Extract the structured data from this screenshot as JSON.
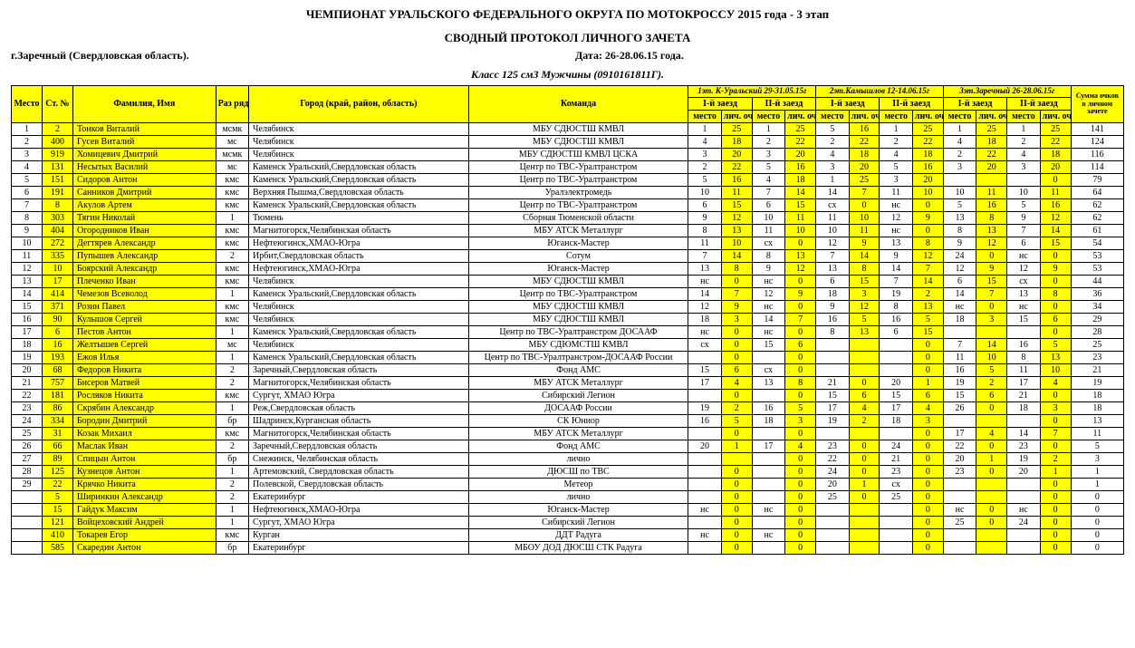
{
  "header": {
    "title1": "ЧЕМПИОНАТ  УРАЛЬСКОГО ФЕДЕРАЛЬНОГО ОКРУГА ПО МОТОКРОССУ 2015 года - 3 этап",
    "title2": "СВОДНЫЙ  ПРОТОКОЛ ЛИЧНОГО ЗАЧЕТА",
    "location": "г.Заречный (Свердловская область).",
    "date": "Дата: 26-28.06.15 года.",
    "class": "Класс 125 см3  Мужчины (0910161811Г)."
  },
  "columns": {
    "mesto": "Место",
    "stn": "Ст. №",
    "name": "Фамилия,  Имя",
    "rank": "Раз ряд",
    "city": "Город (край, район, область)",
    "team": "Команда",
    "sum": "Сумма очков в личном зачете",
    "run_mesto": "место",
    "run_pts": "лич. очки",
    "heat1": "I-й заезд",
    "heat2": "II-й заезд"
  },
  "stages": [
    "1эт. К-Уральский 29-31.05.15г",
    "2эт.Камышлов 12-14.06.15г",
    "3эт.Заречный 26-28.06.15г"
  ],
  "colors": {
    "highlight": "#ffff00",
    "border": "#000000",
    "bg": "#ffffff",
    "text": "#000000"
  },
  "rows": [
    {
      "m": "1",
      "st": "2",
      "name": "Тонков Виталий",
      "rank": "мсмк",
      "city": "Челябинск",
      "team": "МБУ СДЮСТШ КМВЛ",
      "r": [
        [
          "1",
          "25"
        ],
        [
          "1",
          "25"
        ],
        [
          "5",
          "16"
        ],
        [
          "1",
          "25"
        ],
        [
          "1",
          "25"
        ],
        [
          "1",
          "25"
        ]
      ],
      "sum": "141"
    },
    {
      "m": "2",
      "st": "400",
      "name": "Гусев Виталий",
      "rank": "мс",
      "city": "Челябинск",
      "team": "МБУ СДЮСТШ КМВЛ",
      "r": [
        [
          "4",
          "18"
        ],
        [
          "2",
          "22"
        ],
        [
          "2",
          "22"
        ],
        [
          "2",
          "22"
        ],
        [
          "4",
          "18"
        ],
        [
          "2",
          "22"
        ]
      ],
      "sum": "124"
    },
    {
      "m": "3",
      "st": "919",
      "name": "Хомицевич Дмитрий",
      "rank": "мсмк",
      "city": "Челябинск",
      "team": "МБУ СДЮСТШ КМВЛ ЦСКА",
      "r": [
        [
          "3",
          "20"
        ],
        [
          "3",
          "20"
        ],
        [
          "4",
          "18"
        ],
        [
          "4",
          "18"
        ],
        [
          "2",
          "22"
        ],
        [
          "4",
          "18"
        ]
      ],
      "sum": "116"
    },
    {
      "m": "4",
      "st": "131",
      "name": "Несытых Василий",
      "rank": "мс",
      "city": "Каменск Уральский,Свердловская область",
      "team": "Центр по ТВС-Уралтранстром",
      "r": [
        [
          "2",
          "22"
        ],
        [
          "5",
          "16"
        ],
        [
          "3",
          "20"
        ],
        [
          "5",
          "16"
        ],
        [
          "3",
          "20"
        ],
        [
          "3",
          "20"
        ]
      ],
      "sum": "114"
    },
    {
      "m": "5",
      "st": "151",
      "name": "Сидоров Антон",
      "rank": "кмс",
      "city": "Каменск Уральский,Свердловская область",
      "team": "Центр по ТВС-Уралтранстром",
      "r": [
        [
          "5",
          "16"
        ],
        [
          "4",
          "18"
        ],
        [
          "1",
          "25"
        ],
        [
          "3",
          "20"
        ],
        [
          "",
          ""
        ],
        [
          "",
          "0"
        ]
      ],
      "sum": "79"
    },
    {
      "m": "6",
      "st": "191",
      "name": "Санников Дмитрий",
      "rank": "кмс",
      "city": "Верхняя Пышма,Свердловская область",
      "team": "Уралэлектромедь",
      "r": [
        [
          "10",
          "11"
        ],
        [
          "7",
          "14"
        ],
        [
          "14",
          "7"
        ],
        [
          "11",
          "10"
        ],
        [
          "10",
          "11"
        ],
        [
          "10",
          "11"
        ]
      ],
      "sum": "64"
    },
    {
      "m": "7",
      "st": "8",
      "name": "Акулов Артем",
      "rank": "кмс",
      "city": "Каменск Уральский,Свердловская область",
      "team": "Центр по ТВС-Уралтранстром",
      "r": [
        [
          "6",
          "15"
        ],
        [
          "6",
          "15"
        ],
        [
          "сх",
          "0"
        ],
        [
          "нс",
          "0"
        ],
        [
          "5",
          "16"
        ],
        [
          "5",
          "16"
        ]
      ],
      "sum": "62"
    },
    {
      "m": "8",
      "st": "303",
      "name": "Тягин Николай",
      "rank": "1",
      "city": "Тюмень",
      "team": "Сборная Тюменской области",
      "r": [
        [
          "9",
          "12"
        ],
        [
          "10",
          "11"
        ],
        [
          "11",
          "10"
        ],
        [
          "12",
          "9"
        ],
        [
          "13",
          "8"
        ],
        [
          "9",
          "12"
        ]
      ],
      "sum": "62"
    },
    {
      "m": "9",
      "st": "404",
      "name": "Огородников Иван",
      "rank": "кмс",
      "city": "Магнитогорск,Челябинская область",
      "team": "МБУ АТСК Металлург",
      "r": [
        [
          "8",
          "13"
        ],
        [
          "11",
          "10"
        ],
        [
          "10",
          "11"
        ],
        [
          "нс",
          "0"
        ],
        [
          "8",
          "13"
        ],
        [
          "7",
          "14"
        ]
      ],
      "sum": "61"
    },
    {
      "m": "10",
      "st": "272",
      "name": "Дегтярев Александр",
      "rank": "кмс",
      "city": "Нефтеюгинск,ХМАО-Югра",
      "team": "Юганск-Мастер",
      "r": [
        [
          "11",
          "10"
        ],
        [
          "сх",
          "0"
        ],
        [
          "12",
          "9"
        ],
        [
          "13",
          "8"
        ],
        [
          "9",
          "12"
        ],
        [
          "6",
          "15"
        ]
      ],
      "sum": "54"
    },
    {
      "m": "11",
      "st": "335",
      "name": "Пупышев Александр",
      "rank": "2",
      "city": "Ирбит,Свердловская область",
      "team": "Сотум",
      "r": [
        [
          "7",
          "14"
        ],
        [
          "8",
          "13"
        ],
        [
          "7",
          "14"
        ],
        [
          "9",
          "12"
        ],
        [
          "24",
          "0"
        ],
        [
          "нс",
          "0"
        ]
      ],
      "sum": "53"
    },
    {
      "m": "12",
      "st": "10",
      "name": "Боярский Александр",
      "rank": "кмс",
      "city": "Нефтеюгинск,ХМАО-Югра",
      "team": "Юганск-Мастер",
      "r": [
        [
          "13",
          "8"
        ],
        [
          "9",
          "12"
        ],
        [
          "13",
          "8"
        ],
        [
          "14",
          "7"
        ],
        [
          "12",
          "9"
        ],
        [
          "12",
          "9"
        ]
      ],
      "sum": "53"
    },
    {
      "m": "13",
      "st": "17",
      "name": "Плеченко Иван",
      "rank": "кмс",
      "city": "Челябинск",
      "team": "МБУ СДЮСТШ КМВЛ",
      "r": [
        [
          "нс",
          "0"
        ],
        [
          "нс",
          "0"
        ],
        [
          "6",
          "15"
        ],
        [
          "7",
          "14"
        ],
        [
          "6",
          "15"
        ],
        [
          "сх",
          "0"
        ]
      ],
      "sum": "44"
    },
    {
      "m": "14",
      "st": "414",
      "name": "Чемезов Всеволод",
      "rank": "1",
      "city": "Каменск Уральский,Свердловская область",
      "team": "Центр по ТВС-Уралтранстром",
      "r": [
        [
          "14",
          "7"
        ],
        [
          "12",
          "9"
        ],
        [
          "18",
          "3"
        ],
        [
          "19",
          "2"
        ],
        [
          "14",
          "7"
        ],
        [
          "13",
          "8"
        ]
      ],
      "sum": "36"
    },
    {
      "m": "15",
      "st": "371",
      "name": "Розин Павел",
      "rank": "кмс",
      "city": "Челябинск",
      "team": "МБУ СДЮСТШ КМВЛ",
      "r": [
        [
          "12",
          "9"
        ],
        [
          "нс",
          "0"
        ],
        [
          "9",
          "12"
        ],
        [
          "8",
          "13"
        ],
        [
          "нс",
          "0"
        ],
        [
          "нс",
          "0"
        ]
      ],
      "sum": "34"
    },
    {
      "m": "16",
      "st": "90",
      "name": "Кулышов Сергей",
      "rank": "кмс",
      "city": "Челябинск",
      "team": "МБУ СДЮСТШ КМВЛ",
      "r": [
        [
          "18",
          "3"
        ],
        [
          "14",
          "7"
        ],
        [
          "16",
          "5"
        ],
        [
          "16",
          "5"
        ],
        [
          "18",
          "3"
        ],
        [
          "15",
          "6"
        ]
      ],
      "sum": "29"
    },
    {
      "m": "17",
      "st": "6",
      "name": "Пестов Антон",
      "rank": "1",
      "city": "Каменск Уральский,Свердловская область",
      "team": "Центр по ТВС-Уралтранстром ДОСААФ",
      "r": [
        [
          "нс",
          "0"
        ],
        [
          "нс",
          "0"
        ],
        [
          "8",
          "13"
        ],
        [
          "6",
          "15"
        ],
        [
          "",
          ""
        ],
        [
          "",
          "0"
        ]
      ],
      "sum": "28"
    },
    {
      "m": "18",
      "st": "16",
      "name": "Желтышев Сергей",
      "rank": "мс",
      "city": "Челябинск",
      "team": "МБУ СДЮМСТШ КМВЛ",
      "r": [
        [
          "сх",
          "0"
        ],
        [
          "15",
          "6"
        ],
        [
          "",
          ""
        ],
        [
          "",
          "0"
        ],
        [
          "7",
          "14"
        ],
        [
          "16",
          "5"
        ]
      ],
      "sum": "25"
    },
    {
      "m": "19",
      "st": "193",
      "name": "Ежов Илья",
      "rank": "1",
      "city": "Каменск Уральский,Свердловская область",
      "team": "Центр по ТВС-Уралтранстром-ДОСААФ России",
      "r": [
        [
          "",
          "0"
        ],
        [
          "",
          "0"
        ],
        [
          "",
          ""
        ],
        [
          "",
          "0"
        ],
        [
          "11",
          "10"
        ],
        [
          "8",
          "13"
        ]
      ],
      "sum": "23"
    },
    {
      "m": "20",
      "st": "68",
      "name": "Федоров Никита",
      "rank": "2",
      "city": "Заречный,Свердловская область",
      "team": "Фонд АМС",
      "r": [
        [
          "15",
          "6"
        ],
        [
          "сх",
          "0"
        ],
        [
          "",
          ""
        ],
        [
          "",
          "0"
        ],
        [
          "16",
          "5"
        ],
        [
          "11",
          "10"
        ]
      ],
      "sum": "21"
    },
    {
      "m": "21",
      "st": "757",
      "name": "Бисеров Матвей",
      "rank": "2",
      "city": "Магнитогорск,Челябинская область",
      "team": "МБУ АТСК Металлург",
      "r": [
        [
          "17",
          "4"
        ],
        [
          "13",
          "8"
        ],
        [
          "21",
          "0"
        ],
        [
          "20",
          "1"
        ],
        [
          "19",
          "2"
        ],
        [
          "17",
          "4"
        ]
      ],
      "sum": "19"
    },
    {
      "m": "22",
      "st": "181",
      "name": "Росляков Никита",
      "rank": "кмс",
      "city": "Сургут, ХМАО Югра",
      "team": "Сибирский Легион",
      "r": [
        [
          "",
          "0"
        ],
        [
          "",
          "0"
        ],
        [
          "15",
          "6"
        ],
        [
          "15",
          "6"
        ],
        [
          "15",
          "6"
        ],
        [
          "21",
          "0"
        ]
      ],
      "sum": "18"
    },
    {
      "m": "23",
      "st": "86",
      "name": "Скрябин Александр",
      "rank": "1",
      "city": "Реж,Свердловская область",
      "team": "ДОСААФ России",
      "r": [
        [
          "19",
          "2"
        ],
        [
          "16",
          "5"
        ],
        [
          "17",
          "4"
        ],
        [
          "17",
          "4"
        ],
        [
          "26",
          "0"
        ],
        [
          "18",
          "3"
        ]
      ],
      "sum": "18"
    },
    {
      "m": "24",
      "st": "334",
      "name": "Бородин Дмитрий",
      "rank": "бр",
      "city": "Шадринск,Курганская область",
      "team": "СК Юниор",
      "r": [
        [
          "16",
          "5"
        ],
        [
          "18",
          "3"
        ],
        [
          "19",
          "2"
        ],
        [
          "18",
          "3"
        ],
        [
          "",
          ""
        ],
        [
          "",
          "0"
        ]
      ],
      "sum": "13"
    },
    {
      "m": "25",
      "st": "31",
      "name": "Козак Михаил",
      "rank": "кмс",
      "city": "Магнитогорск,Челябинская область",
      "team": "МБУ АТСК Металлург",
      "r": [
        [
          "",
          "0"
        ],
        [
          "",
          "0"
        ],
        [
          "",
          ""
        ],
        [
          "",
          "0"
        ],
        [
          "17",
          "4"
        ],
        [
          "14",
          "7"
        ]
      ],
      "sum": "11"
    },
    {
      "m": "26",
      "st": "66",
      "name": "Маслак Иван",
      "rank": "2",
      "city": "Заречный,Свердловская область",
      "team": "Фонд АМС",
      "r": [
        [
          "20",
          "1"
        ],
        [
          "17",
          "4"
        ],
        [
          "23",
          "0"
        ],
        [
          "24",
          "0"
        ],
        [
          "22",
          "0"
        ],
        [
          "23",
          "0"
        ]
      ],
      "sum": "5"
    },
    {
      "m": "27",
      "st": "89",
      "name": "Спицын Антон",
      "rank": "бр",
      "city": "Снежинск, Челябинская область",
      "team": "лично",
      "r": [
        [
          "",
          ""
        ],
        [
          "",
          "0"
        ],
        [
          "22",
          "0"
        ],
        [
          "21",
          "0"
        ],
        [
          "20",
          "1"
        ],
        [
          "19",
          "2"
        ]
      ],
      "sum": "3"
    },
    {
      "m": "28",
      "st": "125",
      "name": "Кузнецов Антон",
      "rank": "1",
      "city": "Артемовский, Свердловская область",
      "team": "ДЮСШ по ТВС",
      "r": [
        [
          "",
          "0"
        ],
        [
          "",
          "0"
        ],
        [
          "24",
          "0"
        ],
        [
          "23",
          "0"
        ],
        [
          "23",
          "0"
        ],
        [
          "20",
          "1"
        ]
      ],
      "sum": "1"
    },
    {
      "m": "29",
      "st": "22",
      "name": "Крячко Никита",
      "rank": "2",
      "city": "Полевской, Свердловская область",
      "team": "Метеор",
      "r": [
        [
          "",
          "0"
        ],
        [
          "",
          "0"
        ],
        [
          "20",
          "1"
        ],
        [
          "сх",
          "0"
        ],
        [
          "",
          ""
        ],
        [
          "",
          "0"
        ]
      ],
      "sum": "1"
    },
    {
      "m": "",
      "st": "5",
      "name": "Ширинкин Александр",
      "rank": "2",
      "city": "Екатеринбург",
      "team": "лично",
      "r": [
        [
          "",
          "0"
        ],
        [
          "",
          "0"
        ],
        [
          "25",
          "0"
        ],
        [
          "25",
          "0"
        ],
        [
          "",
          ""
        ],
        [
          "",
          "0"
        ]
      ],
      "sum": "0"
    },
    {
      "m": "",
      "st": "15",
      "name": "Гайдук Максим",
      "rank": "1",
      "city": "Нефтеюгинск,ХМАО-Югра",
      "team": "Юганск-Мастер",
      "r": [
        [
          "нс",
          "0"
        ],
        [
          "нс",
          "0"
        ],
        [
          "",
          ""
        ],
        [
          "",
          "0"
        ],
        [
          "нс",
          "0"
        ],
        [
          "нс",
          "0"
        ]
      ],
      "sum": "0"
    },
    {
      "m": "",
      "st": "121",
      "name": "Войцеховский Андрей",
      "rank": "1",
      "city": "Сургут, ХМАО Югра",
      "team": "Сибирский Легион",
      "r": [
        [
          "",
          "0"
        ],
        [
          "",
          "0"
        ],
        [
          "",
          ""
        ],
        [
          "",
          "0"
        ],
        [
          "25",
          "0"
        ],
        [
          "24",
          "0"
        ]
      ],
      "sum": "0"
    },
    {
      "m": "",
      "st": "410",
      "name": "Токарев Егор",
      "rank": "кмс",
      "city": "Курган",
      "team": "ДДТ Радуга",
      "r": [
        [
          "нс",
          "0"
        ],
        [
          "нс",
          "0"
        ],
        [
          "",
          ""
        ],
        [
          "",
          "0"
        ],
        [
          "",
          ""
        ],
        [
          "",
          "0"
        ]
      ],
      "sum": "0"
    },
    {
      "m": "",
      "st": "585",
      "name": "Скаредин Антон",
      "rank": "бр",
      "city": "Екатеринбург",
      "team": "МБОУ ДОД ДЮСШ СТК Радуга",
      "r": [
        [
          "",
          "0"
        ],
        [
          "",
          "0"
        ],
        [
          "",
          ""
        ],
        [
          "",
          "0"
        ],
        [
          "",
          ""
        ],
        [
          "",
          "0"
        ]
      ],
      "sum": "0"
    }
  ]
}
